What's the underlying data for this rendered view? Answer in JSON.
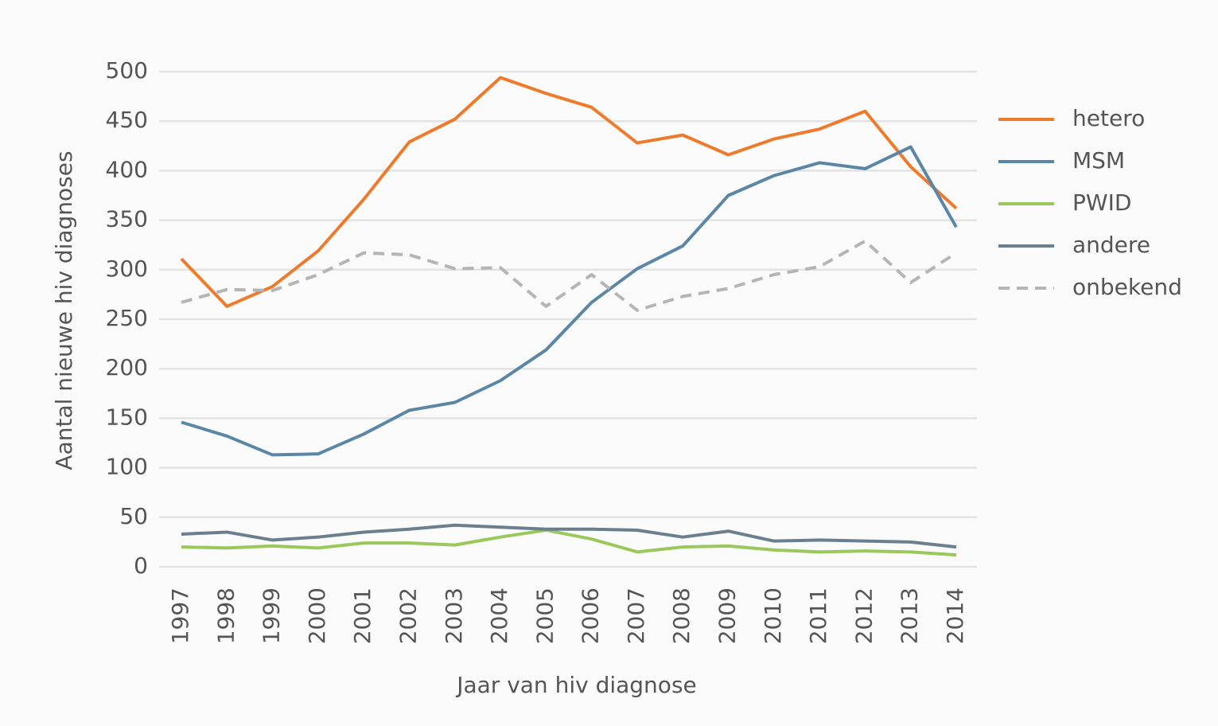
{
  "chart_data": {
    "type": "line",
    "y_label": "Aantal nieuwe hiv diagnoses",
    "x_label": "Jaar van hiv diagnose",
    "categories": [
      "1997",
      "1998",
      "1999",
      "2000",
      "2001",
      "2002",
      "2003",
      "2004",
      "2005",
      "2006",
      "2007",
      "2008",
      "2009",
      "2010",
      "2011",
      "2012",
      "2013",
      "2014"
    ],
    "series": [
      {
        "name": "hetero",
        "color": "#ee7a2c",
        "values": [
          311,
          263,
          283,
          319,
          371,
          429,
          452,
          494,
          478,
          464,
          428,
          436,
          416,
          432,
          442,
          460,
          404,
          362
        ]
      },
      {
        "name": "MSM",
        "color": "#5b87a6",
        "values": [
          146,
          132,
          113,
          114,
          134,
          158,
          166,
          188,
          219,
          267,
          301,
          324,
          375,
          395,
          408,
          402,
          424,
          343
        ]
      },
      {
        "name": "PWID",
        "color": "#9bc85a",
        "values": [
          20,
          19,
          21,
          19,
          24,
          24,
          22,
          30,
          37,
          28,
          15,
          20,
          21,
          17,
          15,
          16,
          15,
          12
        ]
      },
      {
        "name": "andere",
        "color": "#6b7f8f",
        "values": [
          33,
          35,
          27,
          30,
          35,
          38,
          42,
          40,
          38,
          38,
          37,
          30,
          36,
          26,
          27,
          26,
          25,
          20
        ]
      },
      {
        "name": "onbekend",
        "color": "#b5b5b5",
        "dashed": true,
        "values": [
          267,
          280,
          279,
          295,
          317,
          315,
          301,
          302,
          263,
          295,
          259,
          273,
          281,
          295,
          303,
          329,
          287,
          317
        ]
      }
    ],
    "ylim": [
      0,
      500
    ],
    "yticks": [
      0,
      50,
      100,
      150,
      200,
      250,
      300,
      350,
      400,
      450,
      500
    ],
    "grid": true,
    "legend": "right"
  }
}
